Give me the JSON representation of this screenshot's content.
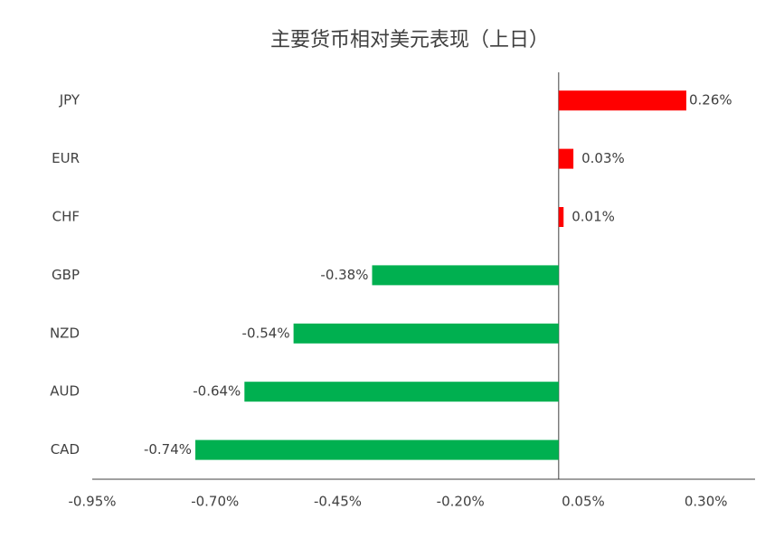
{
  "chart_data": {
    "type": "hbar",
    "title": "主要货币相对美元表现（上日）",
    "categories": [
      "JPY",
      "EUR",
      "CHF",
      "GBP",
      "NZD",
      "AUD",
      "CAD"
    ],
    "values": [
      0.26,
      0.03,
      0.01,
      -0.38,
      -0.54,
      -0.64,
      -0.74
    ],
    "value_labels": [
      "0.26%",
      "0.03%",
      "0.01%",
      "-0.38%",
      "-0.54%",
      "-0.64%",
      "-0.74%"
    ],
    "positive_color": "#ff0000",
    "negative_color": "#00b050",
    "xlim": [
      -0.95,
      0.4
    ],
    "xticks": [
      {
        "value": -0.95,
        "label": "-0.95%"
      },
      {
        "value": -0.7,
        "label": "-0.70%"
      },
      {
        "value": -0.45,
        "label": "-0.45%"
      },
      {
        "value": -0.2,
        "label": "-0.20%"
      },
      {
        "value": 0.05,
        "label": "0.05%"
      },
      {
        "value": 0.3,
        "label": "0.30%"
      }
    ],
    "grid": false
  }
}
